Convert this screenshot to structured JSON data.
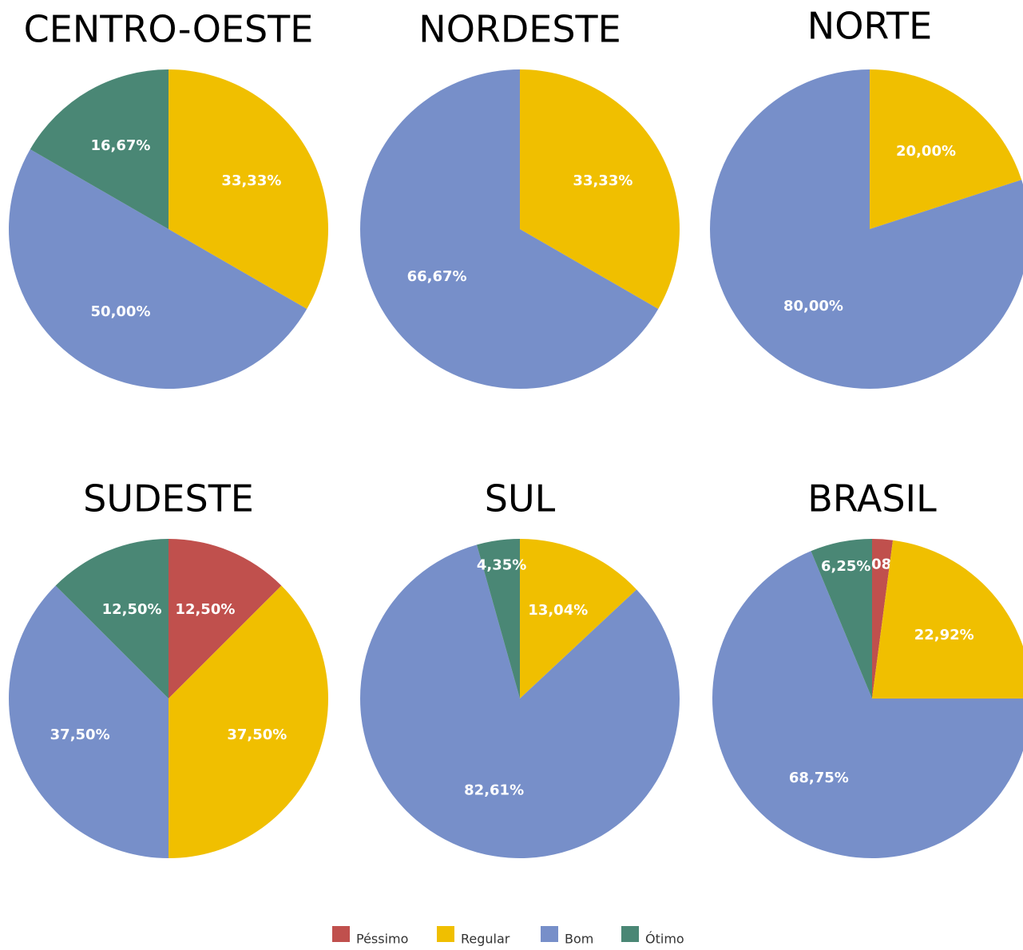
{
  "chart_data": [
    {
      "type": "pie",
      "title": "CENTRO-OESTE",
      "categories": [
        "Regular",
        "Bom",
        "Ótimo"
      ],
      "values": [
        33.33,
        50,
        16.67
      ],
      "value_labels": [
        "33,33%",
        "50,00%",
        "16,67%"
      ]
    },
    {
      "type": "pie",
      "title": "NORDESTE",
      "categories": [
        "Regular",
        "Bom"
      ],
      "values": [
        33.33,
        66.67
      ],
      "value_labels": [
        "33,33%",
        "66,67%"
      ]
    },
    {
      "type": "pie",
      "title": "NORTE",
      "categories": [
        "Regular",
        "Bom"
      ],
      "values": [
        20,
        80
      ],
      "value_labels": [
        "20,00%",
        "80,00%"
      ]
    },
    {
      "type": "pie",
      "title": "SUDESTE",
      "categories": [
        "Péssimo",
        "Regular",
        "Bom",
        "Ótimo"
      ],
      "values": [
        12.5,
        37.5,
        37.5,
        12.5
      ],
      "value_labels": [
        "12,50%",
        "37,50%",
        "37,50%",
        "12,50%"
      ]
    },
    {
      "type": "pie",
      "title": "SUL",
      "categories": [
        "Regular",
        "Bom",
        "Ótimo"
      ],
      "values": [
        13.04,
        82.61,
        4.35
      ],
      "value_labels": [
        "13,04%",
        "82,61%",
        "4,35%"
      ]
    },
    {
      "type": "pie",
      "title": "BRASIL",
      "categories": [
        "Péssimo",
        "Regular",
        "Bom",
        "Ótimo"
      ],
      "values": [
        2.08,
        22.92,
        68.75,
        6.25
      ],
      "value_labels": [
        "2,08%",
        "22,92%",
        "68,75%",
        "6,25%"
      ]
    }
  ],
  "legend": {
    "categories": [
      "Péssimo",
      "Regular",
      "Bom",
      "Ótimo"
    ],
    "colors": [
      "#c0504d",
      "#f0bf00",
      "#778fc9",
      "#4a8775"
    ]
  }
}
